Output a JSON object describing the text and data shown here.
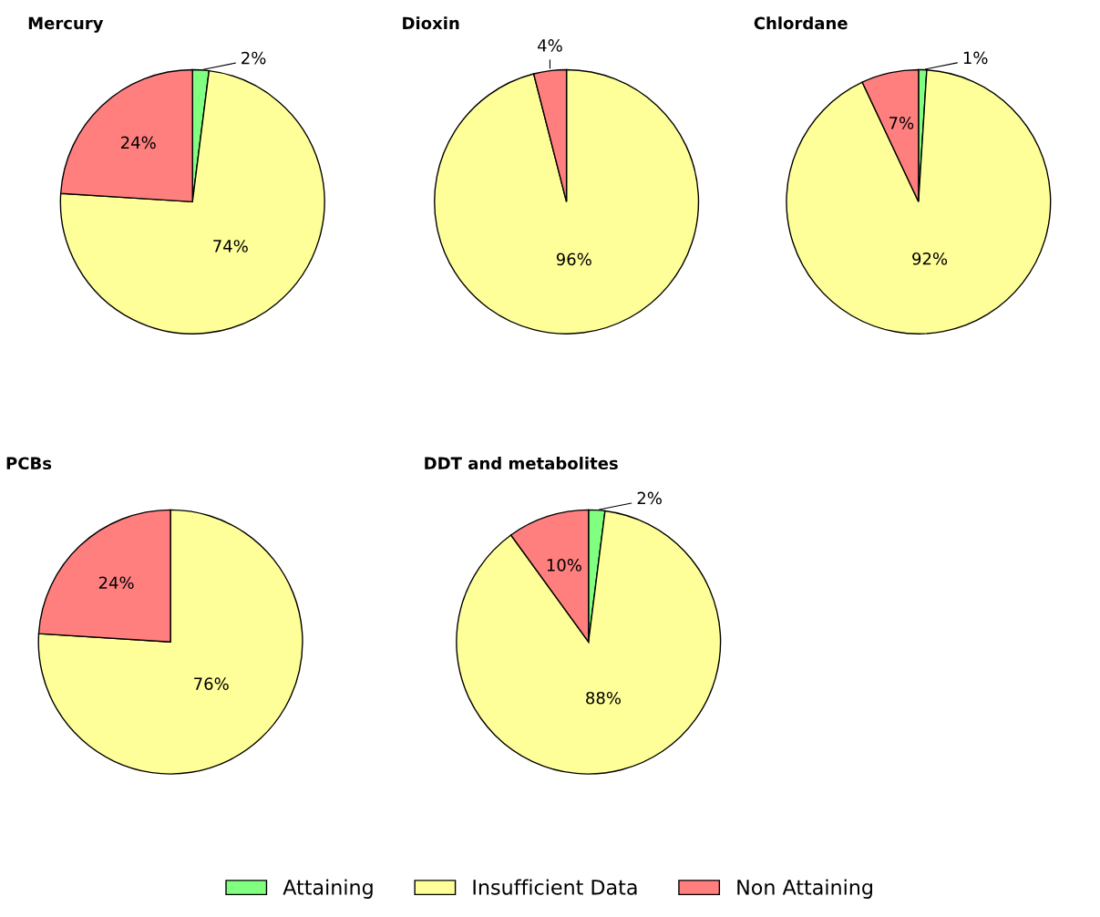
{
  "chart_data": [
    {
      "type": "pie",
      "title": "Mercury",
      "categories": [
        "Attaining",
        "Insufficient Data",
        "Non Attaining"
      ],
      "values": [
        2,
        74,
        24
      ],
      "colors": [
        "#80ff80",
        "#ffff99",
        "#ff7f7f"
      ],
      "value_labels": [
        "2%",
        "74%",
        "24%"
      ],
      "legend": "bottom"
    },
    {
      "type": "pie",
      "title": "Dioxin",
      "categories": [
        null,
        null,
        null
      ],
      "values": [
        0,
        96,
        4
      ],
      "colors": [
        "#80ff80",
        "#ffff99",
        "#ff7f7f"
      ],
      "value_labels": [
        null,
        "96%",
        "4%"
      ]
    },
    {
      "type": "pie",
      "title": "Chlordane",
      "categories": [
        null,
        null,
        null
      ],
      "values": [
        1,
        92,
        7
      ],
      "colors": [
        "#80ff80",
        "#ffff99",
        "#ff7f7f"
      ],
      "value_labels": [
        "1%",
        "92%",
        "7%"
      ]
    },
    {
      "type": "pie",
      "title": "PCBs",
      "categories": [
        null,
        null,
        null
      ],
      "values": [
        0,
        76,
        24
      ],
      "colors": [
        "#80ff80",
        "#ffff99",
        "#ff7f7f"
      ],
      "value_labels": [
        null,
        "76%",
        "24%"
      ]
    },
    {
      "type": "pie",
      "title": "DDT and metabolites",
      "categories": [
        null,
        null,
        null
      ],
      "values": [
        2,
        88,
        10
      ],
      "colors": [
        "#80ff80",
        "#ffff99",
        "#ff7f7f"
      ],
      "value_labels": [
        "2%",
        "88%",
        "10%"
      ]
    }
  ]
}
